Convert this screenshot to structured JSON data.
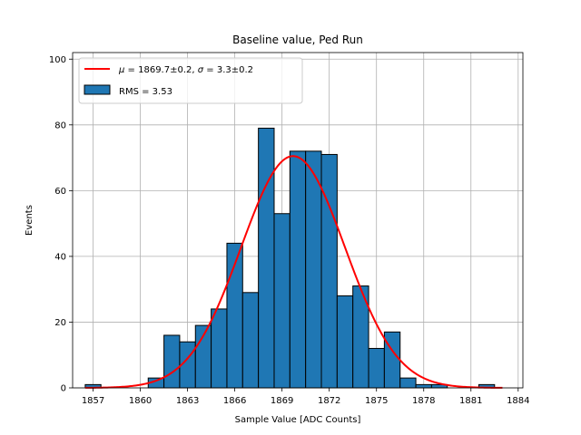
{
  "chart_data": {
    "type": "bar",
    "title": "Baseline value, Ped Run",
    "xlabel": "Sample Value [ADC Counts]",
    "ylabel": "Events",
    "xlim": [
      1855.7,
      1884.3
    ],
    "ylim": [
      0,
      102
    ],
    "grid": true,
    "legend_position": "top-left",
    "bin_width": 1,
    "bins": [
      {
        "left": 1856.5,
        "count": 1
      },
      {
        "left": 1857.5,
        "count": 0
      },
      {
        "left": 1858.5,
        "count": 0
      },
      {
        "left": 1859.5,
        "count": 0
      },
      {
        "left": 1860.5,
        "count": 3
      },
      {
        "left": 1861.5,
        "count": 16
      },
      {
        "left": 1862.5,
        "count": 14
      },
      {
        "left": 1863.5,
        "count": 19
      },
      {
        "left": 1864.5,
        "count": 24
      },
      {
        "left": 1865.5,
        "count": 44
      },
      {
        "left": 1866.5,
        "count": 29
      },
      {
        "left": 1867.5,
        "count": 79
      },
      {
        "left": 1868.5,
        "count": 53
      },
      {
        "left": 1869.5,
        "count": 72
      },
      {
        "left": 1870.5,
        "count": 72
      },
      {
        "left": 1871.5,
        "count": 71
      },
      {
        "left": 1872.5,
        "count": 28
      },
      {
        "left": 1873.5,
        "count": 31
      },
      {
        "left": 1874.5,
        "count": 12
      },
      {
        "left": 1875.5,
        "count": 17
      },
      {
        "left": 1876.5,
        "count": 3
      },
      {
        "left": 1877.5,
        "count": 1
      },
      {
        "left": 1878.5,
        "count": 1
      },
      {
        "left": 1879.5,
        "count": 0
      },
      {
        "left": 1880.5,
        "count": 0
      },
      {
        "left": 1881.5,
        "count": 1
      }
    ],
    "fit": {
      "mu": 1869.7,
      "sigma": 3.3,
      "amplitude": 70.5,
      "x_range": [
        1856.5,
        1883
      ],
      "color": "#ff0000"
    },
    "x_ticks": [
      1857,
      1860,
      1863,
      1866,
      1869,
      1872,
      1875,
      1878,
      1881,
      1884
    ],
    "y_ticks": [
      0,
      20,
      40,
      60,
      80,
      100
    ],
    "legend": [
      {
        "kind": "line",
        "label": "$\\mu = 1869.7\\pm0.2$, $\\sigma = 3.3\\pm0.2$",
        "color": "#ff0000"
      },
      {
        "kind": "patch",
        "label": "RMS = 3.53",
        "color": "#1f77b4"
      }
    ],
    "bar_color": "#1f77b4",
    "bar_edge_color": "#000000"
  },
  "legend_display": {
    "mu_symbol": "μ",
    "mu_rest": " = 1869.7±0.2, ",
    "sigma_symbol": "σ",
    "sigma_rest": " = 3.3±0.2",
    "rms_label": "RMS = 3.53"
  }
}
